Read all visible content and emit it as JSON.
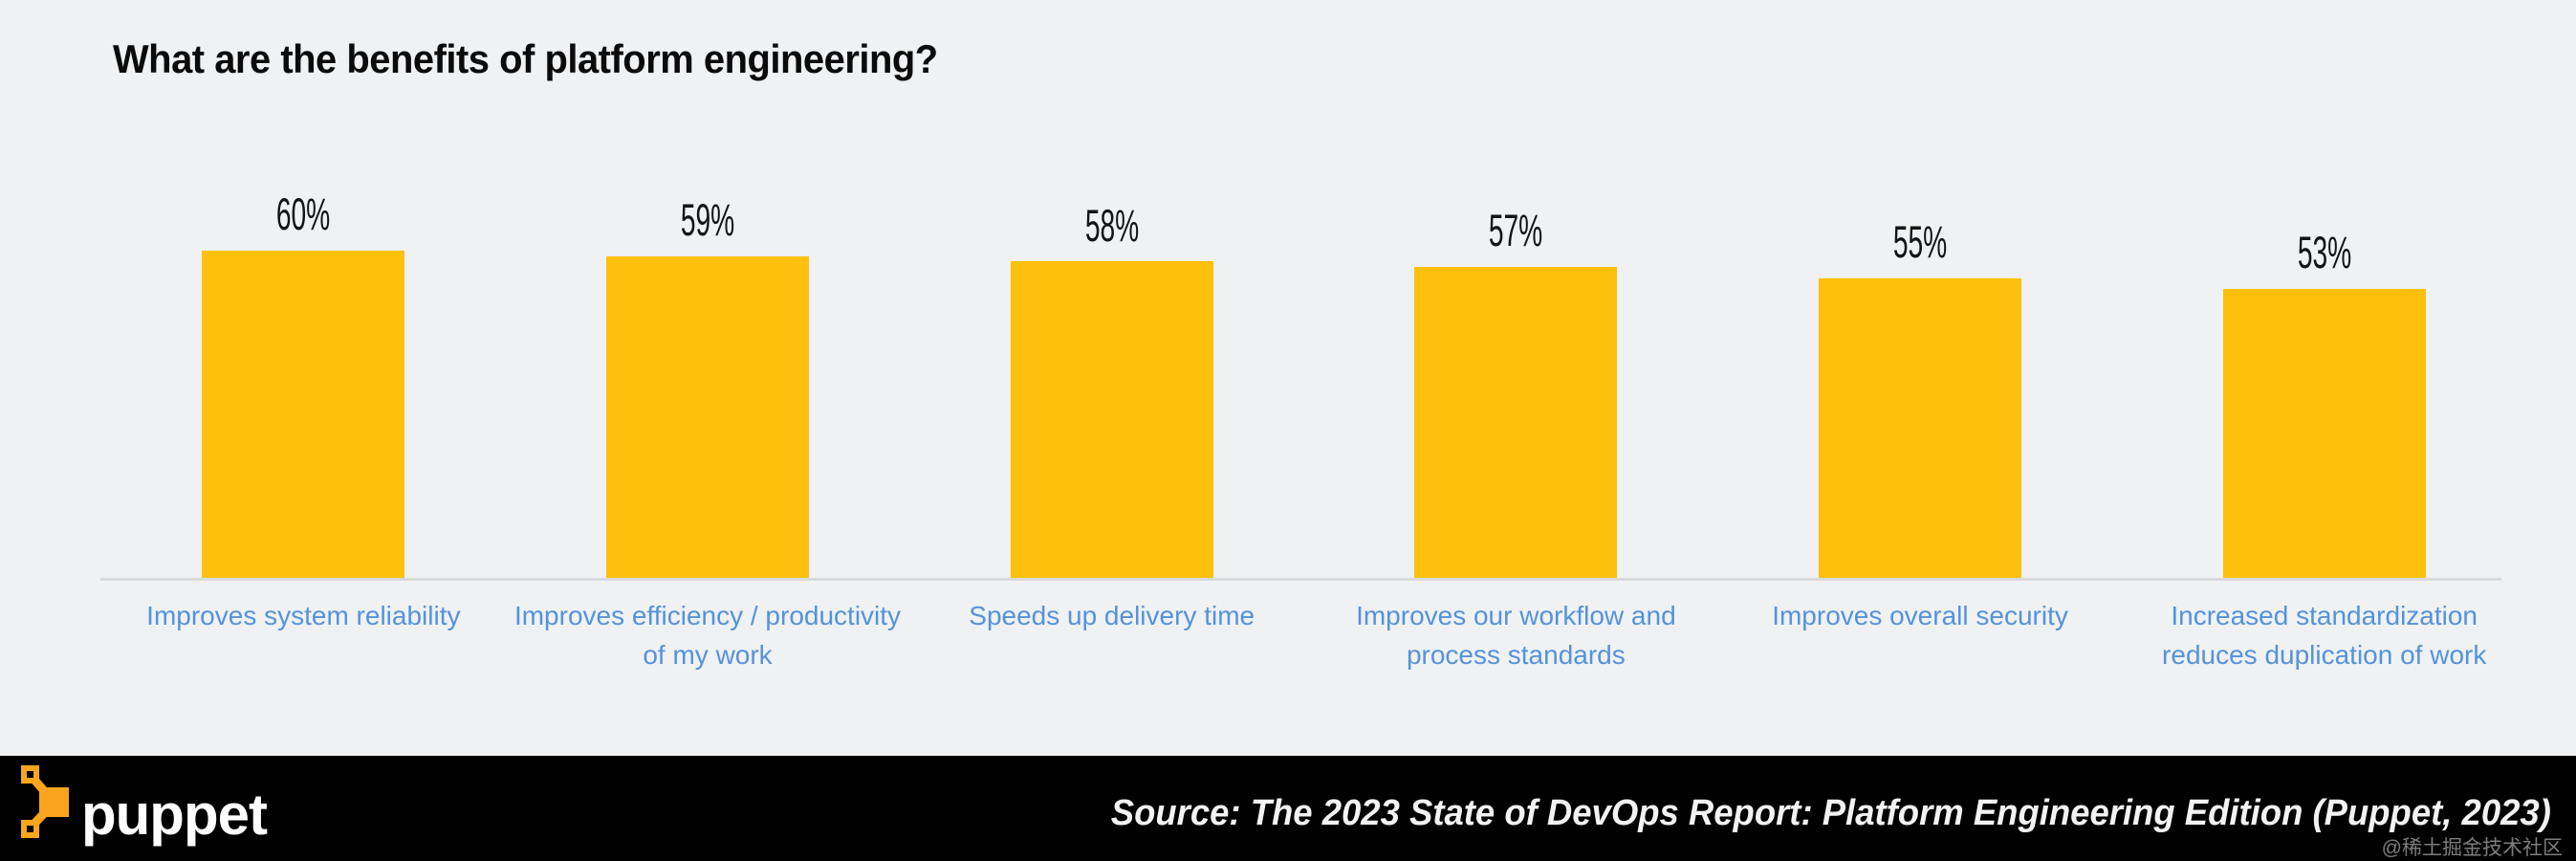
{
  "page": {
    "background": "#EFF1F3"
  },
  "header": {
    "title": "What are the benefits of platform engineering?"
  },
  "chart_data": {
    "type": "bar",
    "title": "What are the benefits of platform engineering?",
    "categories": [
      "Improves system reliability",
      "Improves efficiency / productivity of my work",
      "Speeds up delivery time",
      "Improves our workflow and process standards",
      "Improves overall security",
      "Increased standardization reduces duplication of work"
    ],
    "category_lines": [
      [
        "Improves system reliability"
      ],
      [
        "Improves efficiency / productivity",
        "of my work"
      ],
      [
        "Speeds up delivery time"
      ],
      [
        "Improves our workflow and",
        "process standards"
      ],
      [
        "Improves overall security"
      ],
      [
        "Increased standardization",
        "reduces duplication of work"
      ]
    ],
    "values": [
      60,
      59,
      58,
      57,
      55,
      53
    ],
    "value_labels": [
      "60%",
      "59%",
      "58%",
      "57%",
      "55%",
      "53%"
    ],
    "unit": "%",
    "bar_color": "#FDC00D",
    "category_label_color": "#5592DB",
    "value_label_color": "#141414",
    "axis_line_color": "#D8DADC",
    "grid": false,
    "legend": false,
    "value_label_position": "above-bar",
    "ylabel": "",
    "xlabel": ""
  },
  "footer": {
    "background": "#000000",
    "brand_wordmark": "puppet",
    "logo_color": "#F9A51D",
    "source": "Source: The 2023 State of DevOps Report: Platform Engineering Edition (Puppet, 2023)"
  },
  "watermark": {
    "text": "@稀土掘金技术社区",
    "color": "#7D7D7D"
  }
}
